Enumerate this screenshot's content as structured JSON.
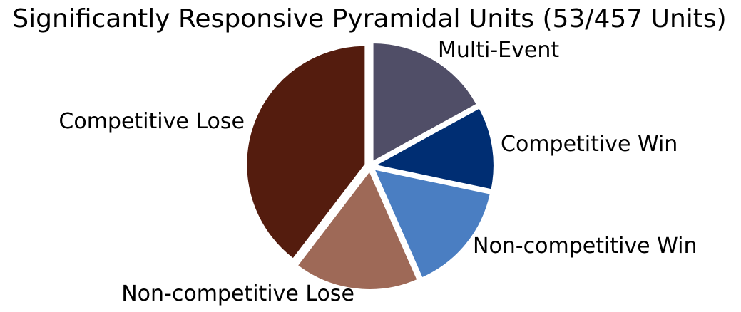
{
  "chart_data": {
    "type": "pie",
    "title": "Significantly Responsive Pyramidal Units (53/457 Units)",
    "start_angle_deg": 90,
    "direction": "clockwise",
    "slices": [
      {
        "label": "Multi-Event",
        "value": 9,
        "color": "#504e67"
      },
      {
        "label": "Competitive Win",
        "value": 6,
        "color": "#002e73"
      },
      {
        "label": "Non-competitive Win",
        "value": 8,
        "color": "#4a7ec2"
      },
      {
        "label": "Non-competitive Lose",
        "value": 9,
        "color": "#9e6957"
      },
      {
        "label": "Competitive Lose",
        "value": 21,
        "color": "#541c0e"
      }
    ]
  }
}
